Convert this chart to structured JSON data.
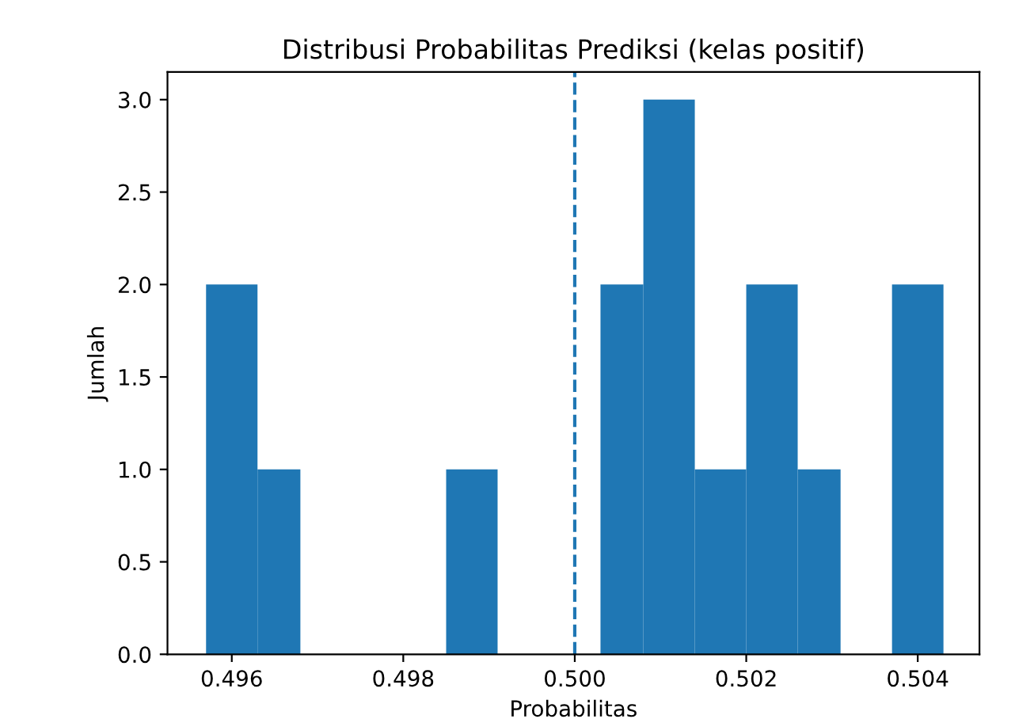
{
  "chart_data": {
    "type": "histogram",
    "title": "Distribusi Probabilitas Prediksi (kelas positif)",
    "xlabel": "Probabilitas",
    "ylabel": "Jumlah",
    "bins": [
      0.4957,
      0.4963,
      0.4968,
      0.4985,
      0.4991,
      0.5003,
      0.5008,
      0.5014,
      0.502,
      0.5026,
      0.5031,
      0.5037,
      0.5043
    ],
    "values": [
      2,
      1,
      0,
      1,
      0,
      2,
      3,
      1,
      2,
      1,
      0,
      2
    ],
    "color": "#1f77b4",
    "xlim": [
      0.49525,
      0.50472
    ],
    "ylim": [
      0,
      3.15
    ],
    "xticks": [
      {
        "value": 0.496,
        "label": "0.496"
      },
      {
        "value": 0.498,
        "label": "0.498"
      },
      {
        "value": 0.5,
        "label": "0.500"
      },
      {
        "value": 0.502,
        "label": "0.502"
      },
      {
        "value": 0.504,
        "label": "0.504"
      }
    ],
    "yticks": [
      {
        "value": 0,
        "label": "0.0"
      },
      {
        "value": 0.5,
        "label": "0.5"
      },
      {
        "value": 1,
        "label": "1.0"
      },
      {
        "value": 1.5,
        "label": "1.5"
      },
      {
        "value": 2,
        "label": "2.0"
      },
      {
        "value": 2.5,
        "label": "2.5"
      },
      {
        "value": 3,
        "label": "3.0"
      }
    ],
    "ref_lines": [
      {
        "axis": "x",
        "value": 0.5,
        "color": "#1f77b4",
        "line_style": "dashed"
      }
    ],
    "grid": false
  }
}
